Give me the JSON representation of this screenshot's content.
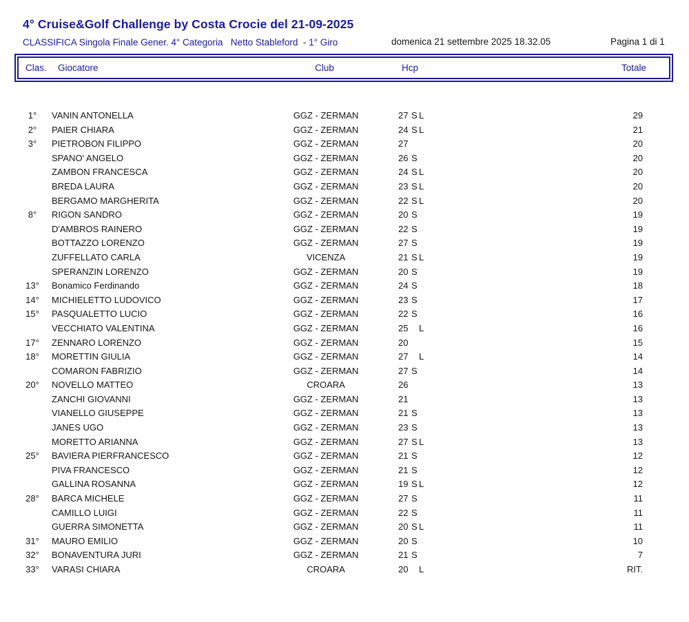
{
  "colors": {
    "accent": "#1b1b99",
    "text": "#161616"
  },
  "header": {
    "title": "4° Cruise&Golf Challenge by Costa Crocie del 21-09-2025",
    "subtitle": "CLASSIFICA Singola Finale Gener. 4° Categoria   Netto Stableford  - 1° Giro",
    "datetime": "domenica 21 settembre 2025 18.32.05",
    "page_indicator": "Pagina 1 di 1"
  },
  "table": {
    "columns": {
      "clas": "Clas.",
      "giocatore": "Giocatore",
      "club": "Club",
      "hcp": "Hcp",
      "totale": "Totale"
    },
    "rows": [
      {
        "pos": "1°",
        "name": "VANIN ANTONELLA",
        "club": "GGZ - ZERMAN",
        "hcp": "27",
        "s": "S",
        "l": "L",
        "total": "29"
      },
      {
        "pos": "2°",
        "name": "PAIER CHIARA",
        "club": "GGZ - ZERMAN",
        "hcp": "24",
        "s": "S",
        "l": "L",
        "total": "21"
      },
      {
        "pos": "3°",
        "name": "PIETROBON FILIPPO",
        "club": "GGZ - ZERMAN",
        "hcp": "27",
        "s": "",
        "l": "",
        "total": "20"
      },
      {
        "pos": "",
        "name": "SPANO' ANGELO",
        "club": "GGZ - ZERMAN",
        "hcp": "26",
        "s": "S",
        "l": "",
        "total": "20"
      },
      {
        "pos": "",
        "name": "ZAMBON FRANCESCA",
        "club": "GGZ - ZERMAN",
        "hcp": "24",
        "s": "S",
        "l": "L",
        "total": "20"
      },
      {
        "pos": "",
        "name": "BREDA LAURA",
        "club": "GGZ - ZERMAN",
        "hcp": "23",
        "s": "S",
        "l": "L",
        "total": "20"
      },
      {
        "pos": "",
        "name": "BERGAMO MARGHERITA",
        "club": "GGZ - ZERMAN",
        "hcp": "22",
        "s": "S",
        "l": "L",
        "total": "20"
      },
      {
        "pos": "8°",
        "name": "RIGON SANDRO",
        "club": "GGZ - ZERMAN",
        "hcp": "20",
        "s": "S",
        "l": "",
        "total": "19"
      },
      {
        "pos": "",
        "name": "D'AMBROS RAINERO",
        "club": "GGZ - ZERMAN",
        "hcp": "22",
        "s": "S",
        "l": "",
        "total": "19"
      },
      {
        "pos": "",
        "name": "BOTTAZZO LORENZO",
        "club": "GGZ - ZERMAN",
        "hcp": "27",
        "s": "S",
        "l": "",
        "total": "19"
      },
      {
        "pos": "",
        "name": "ZUFFELLATO CARLA",
        "club": "VICENZA",
        "hcp": "21",
        "s": "S",
        "l": "L",
        "total": "19"
      },
      {
        "pos": "",
        "name": "SPERANZIN LORENZO",
        "club": "GGZ - ZERMAN",
        "hcp": "20",
        "s": "S",
        "l": "",
        "total": "19"
      },
      {
        "pos": "13°",
        "name": "Bonamico Ferdinando",
        "club": "GGZ - ZERMAN",
        "hcp": "24",
        "s": "S",
        "l": "",
        "total": "18"
      },
      {
        "pos": "14°",
        "name": "MICHIELETTO LUDOVICO",
        "club": "GGZ - ZERMAN",
        "hcp": "23",
        "s": "S",
        "l": "",
        "total": "17"
      },
      {
        "pos": "15°",
        "name": "PASQUALETTO LUCIO",
        "club": "GGZ - ZERMAN",
        "hcp": "22",
        "s": "S",
        "l": "",
        "total": "16"
      },
      {
        "pos": "",
        "name": "VECCHIATO VALENTINA",
        "club": "GGZ - ZERMAN",
        "hcp": "25",
        "s": "",
        "l": "L",
        "total": "16"
      },
      {
        "pos": "17°",
        "name": "ZENNARO LORENZO",
        "club": "GGZ - ZERMAN",
        "hcp": "20",
        "s": "",
        "l": "",
        "total": "15"
      },
      {
        "pos": "18°",
        "name": "MORETTIN GIULIA",
        "club": "GGZ - ZERMAN",
        "hcp": "27",
        "s": "",
        "l": "L",
        "total": "14"
      },
      {
        "pos": "",
        "name": "COMARON FABRIZIO",
        "club": "GGZ - ZERMAN",
        "hcp": "27",
        "s": "S",
        "l": "",
        "total": "14"
      },
      {
        "pos": "20°",
        "name": "NOVELLO MATTEO",
        "club": "CROARA",
        "hcp": "26",
        "s": "",
        "l": "",
        "total": "13"
      },
      {
        "pos": "",
        "name": "ZANCHI GIOVANNI",
        "club": "GGZ - ZERMAN",
        "hcp": "21",
        "s": "",
        "l": "",
        "total": "13"
      },
      {
        "pos": "",
        "name": "VIANELLO GIUSEPPE",
        "club": "GGZ - ZERMAN",
        "hcp": "21",
        "s": "S",
        "l": "",
        "total": "13"
      },
      {
        "pos": "",
        "name": "JANES UGO",
        "club": "GGZ - ZERMAN",
        "hcp": "23",
        "s": "S",
        "l": "",
        "total": "13"
      },
      {
        "pos": "",
        "name": "MORETTO ARIANNA",
        "club": "GGZ - ZERMAN",
        "hcp": "27",
        "s": "S",
        "l": "L",
        "total": "13"
      },
      {
        "pos": "25°",
        "name": "BAVIERA PIERFRANCESCO",
        "club": "GGZ - ZERMAN",
        "hcp": "21",
        "s": "S",
        "l": "",
        "total": "12"
      },
      {
        "pos": "",
        "name": "PIVA FRANCESCO",
        "club": "GGZ - ZERMAN",
        "hcp": "21",
        "s": "S",
        "l": "",
        "total": "12"
      },
      {
        "pos": "",
        "name": "GALLINA ROSANNA",
        "club": "GGZ - ZERMAN",
        "hcp": "19",
        "s": "S",
        "l": "L",
        "total": "12"
      },
      {
        "pos": "28°",
        "name": "BARCA MICHELE",
        "club": "GGZ - ZERMAN",
        "hcp": "27",
        "s": "S",
        "l": "",
        "total": "11"
      },
      {
        "pos": "",
        "name": "CAMILLO LUIGI",
        "club": "GGZ - ZERMAN",
        "hcp": "22",
        "s": "S",
        "l": "",
        "total": "11"
      },
      {
        "pos": "",
        "name": "GUERRA SIMONETTA",
        "club": "GGZ - ZERMAN",
        "hcp": "20",
        "s": "S",
        "l": "L",
        "total": "11"
      },
      {
        "pos": "31°",
        "name": "MAURO EMILIO",
        "club": "GGZ - ZERMAN",
        "hcp": "20",
        "s": "S",
        "l": "",
        "total": "10"
      },
      {
        "pos": "32°",
        "name": "BONAVENTURA JURI",
        "club": "GGZ - ZERMAN",
        "hcp": "21",
        "s": "S",
        "l": "",
        "total": "7"
      },
      {
        "pos": "33°",
        "name": "VARASI CHIARA",
        "club": "CROARA",
        "hcp": "20",
        "s": "",
        "l": "L",
        "total": "RIT."
      }
    ]
  }
}
